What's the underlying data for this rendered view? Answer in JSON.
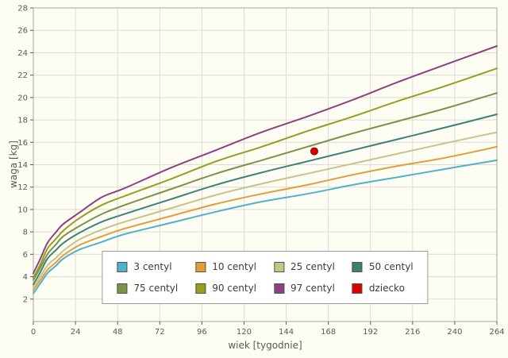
{
  "chart_data": {
    "type": "line",
    "title": "",
    "xlabel": "wiek [tygodnie]",
    "ylabel": "waga [kg]",
    "xlim": [
      0,
      264
    ],
    "ylim": [
      0,
      28
    ],
    "x_tick_step": 24,
    "y_tick_step": 2,
    "grid": true,
    "legend_position": "inside-bottom-center",
    "x": [
      0,
      4,
      8,
      13,
      17,
      26,
      39,
      52,
      78,
      104,
      130,
      156,
      182,
      208,
      234,
      264
    ],
    "series": [
      {
        "name": "3 centyl",
        "color": "#4fb2cc",
        "values": [
          2.5,
          3.4,
          4.3,
          5.0,
          5.6,
          6.4,
          7.1,
          7.8,
          8.8,
          9.8,
          10.7,
          11.4,
          12.2,
          12.9,
          13.6,
          14.4
        ]
      },
      {
        "name": "10 centyl",
        "color": "#e39e3c",
        "values": [
          2.8,
          3.7,
          4.6,
          5.3,
          5.9,
          6.8,
          7.6,
          8.3,
          9.4,
          10.5,
          11.4,
          12.2,
          13.1,
          13.9,
          14.6,
          15.6
        ]
      },
      {
        "name": "25 centyl",
        "color": "#c8c389",
        "values": [
          3.0,
          4.0,
          5.0,
          5.7,
          6.3,
          7.3,
          8.2,
          8.9,
          10.1,
          11.3,
          12.3,
          13.2,
          14.1,
          15.0,
          15.9,
          16.9
        ]
      },
      {
        "name": "50 centyl",
        "color": "#3d8273",
        "values": [
          3.3,
          4.4,
          5.6,
          6.4,
          7.0,
          7.9,
          8.9,
          9.6,
          10.9,
          12.2,
          13.3,
          14.3,
          15.3,
          16.3,
          17.3,
          18.5
        ]
      },
      {
        "name": "75 centyl",
        "color": "#7e9148",
        "values": [
          3.7,
          4.8,
          6.0,
          6.9,
          7.6,
          8.5,
          9.6,
          10.4,
          11.8,
          13.2,
          14.4,
          15.6,
          16.8,
          17.9,
          19.0,
          20.4
        ]
      },
      {
        "name": "90 centyl",
        "color": "#969e1f",
        "values": [
          3.9,
          5.1,
          6.5,
          7.4,
          8.1,
          9.2,
          10.4,
          11.2,
          12.7,
          14.3,
          15.6,
          17.0,
          18.3,
          19.7,
          21.0,
          22.6
        ]
      },
      {
        "name": "97 centyl",
        "color": "#8e4080",
        "values": [
          4.3,
          5.6,
          7.0,
          8.0,
          8.7,
          9.7,
          11.1,
          11.9,
          13.7,
          15.3,
          16.9,
          18.3,
          19.8,
          21.4,
          22.9,
          24.6
        ]
      }
    ],
    "point": {
      "name": "dziecko",
      "color": "#dd0000",
      "x": 160,
      "y": 15.2
    },
    "colors": {
      "grid": "#dcdcd2",
      "border": "#a8a89c",
      "tick_text": "#5a5a52",
      "plot_bg": "#fdfdf4"
    }
  }
}
